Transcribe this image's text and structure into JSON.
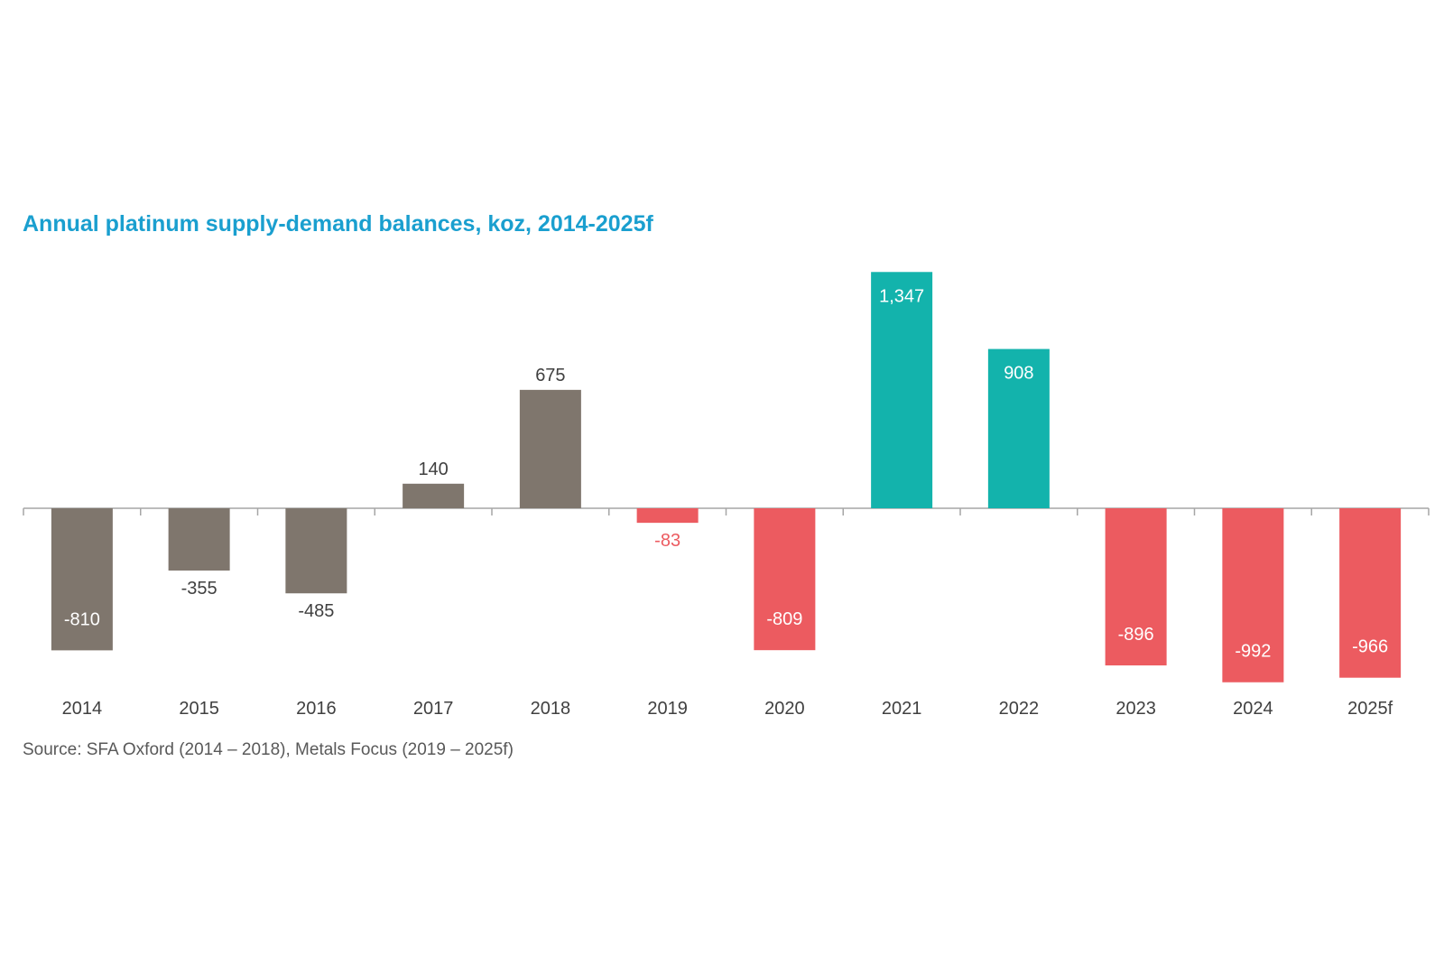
{
  "chart_data": {
    "type": "bar",
    "title": "Annual platinum supply-demand balances, koz, 2014-2025f",
    "source": "Source: SFA Oxford (2014 – 2018), Metals Focus (2019 – 2025f)",
    "categories": [
      "2014",
      "2015",
      "2016",
      "2017",
      "2018",
      "2019",
      "2020",
      "2021",
      "2022",
      "2023",
      "2024",
      "2025f"
    ],
    "values": [
      -810,
      -355,
      -485,
      140,
      675,
      -83,
      -809,
      1347,
      908,
      -896,
      -992,
      -966
    ],
    "labels": [
      "-810",
      "-355",
      "-485",
      "140",
      "675",
      "-83",
      "-809",
      "1,347",
      "908",
      "-896",
      "-992",
      "-966"
    ],
    "colors": [
      "#7f766d",
      "#7f766d",
      "#7f766d",
      "#7f766d",
      "#7f766d",
      "#ec5b60",
      "#ec5b60",
      "#13b3ac",
      "#13b3ac",
      "#ec5b60",
      "#ec5b60",
      "#ec5b60"
    ],
    "ylim": [
      -1000,
      1400
    ],
    "grid": false,
    "legend": "none"
  }
}
